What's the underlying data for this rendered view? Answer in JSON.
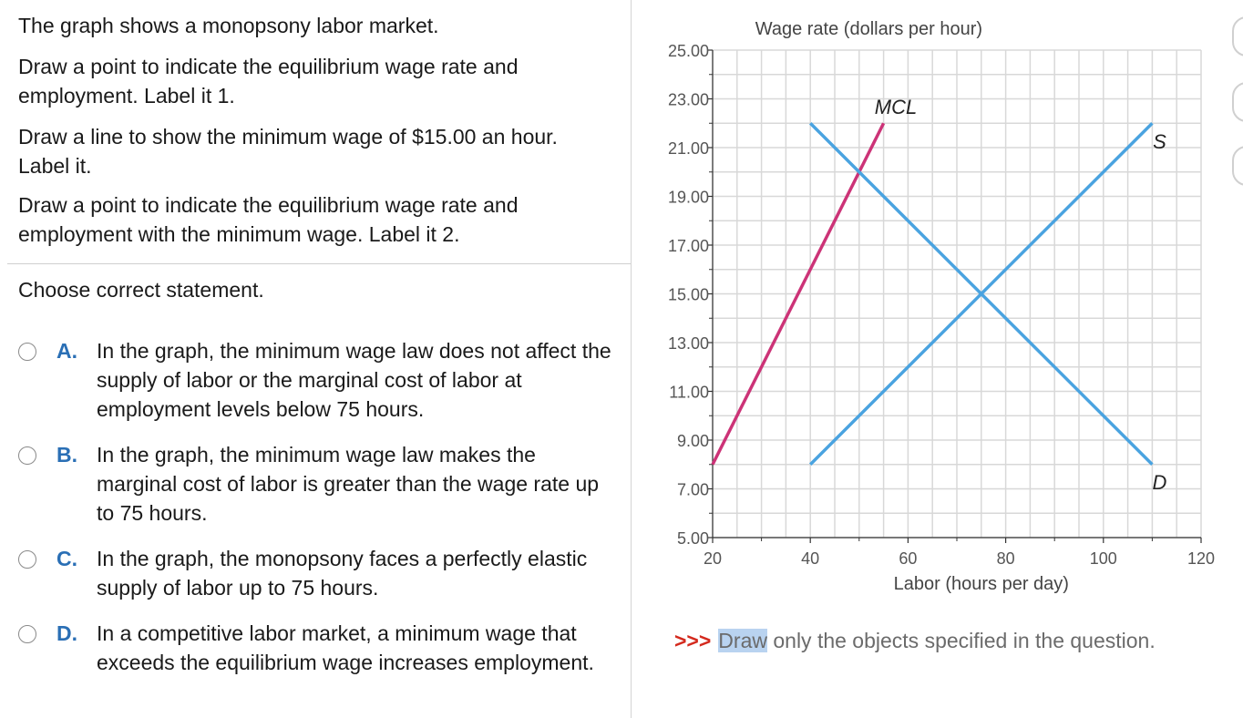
{
  "question": {
    "intro": "The graph shows a monopsony labor market.",
    "task1": "Draw a point to indicate the equilibrium wage rate and employment. Label it 1.",
    "task2": "Draw a line to show the minimum wage of $15.00 an hour. Label it.",
    "task3": "Draw a point to indicate the equilibrium wage rate and employment with the minimum wage. Label it 2.",
    "prompt": "Choose correct statement."
  },
  "choices": [
    {
      "letter": "A.",
      "text": "In the graph, the minimum wage law does not affect the supply of labor or the marginal cost of labor at employment levels below 75 hours."
    },
    {
      "letter": "B.",
      "text": "In the graph, the minimum wage law makes the marginal cost of labor is greater than the wage rate up to 75 hours."
    },
    {
      "letter": "C.",
      "text": "In the graph, the monopsony faces a perfectly elastic supply of labor up to 75 hours."
    },
    {
      "letter": "D.",
      "text": "In a competitive labor market, a minimum wage that exceeds the equilibrium wage increases employment."
    }
  ],
  "footer": {
    "arrows": ">>>",
    "highlight": "Draw",
    "rest": " only the objects specified in the question."
  },
  "chart_data": {
    "type": "line",
    "ylabel": "Wage rate (dollars per hour)",
    "xlabel": "Labor (hours per day)",
    "xlim": [
      20,
      120
    ],
    "ylim": [
      5,
      25
    ],
    "x_ticks": [
      20,
      40,
      60,
      80,
      100,
      120
    ],
    "y_ticks": [
      "5.00",
      "7.00",
      "9.00",
      "11.00",
      "13.00",
      "15.00",
      "17.00",
      "19.00",
      "21.00",
      "23.00",
      "25.00"
    ],
    "grid": true,
    "series": [
      {
        "name": "MCL",
        "color": "#cc3377",
        "points": [
          [
            20,
            8
          ],
          [
            55,
            22
          ]
        ]
      },
      {
        "name": "S",
        "color": "#4aa3e0",
        "points": [
          [
            40,
            8
          ],
          [
            110,
            22
          ]
        ]
      },
      {
        "name": "D",
        "color": "#4aa3e0",
        "points": [
          [
            40,
            22
          ],
          [
            110,
            8
          ]
        ]
      }
    ]
  }
}
